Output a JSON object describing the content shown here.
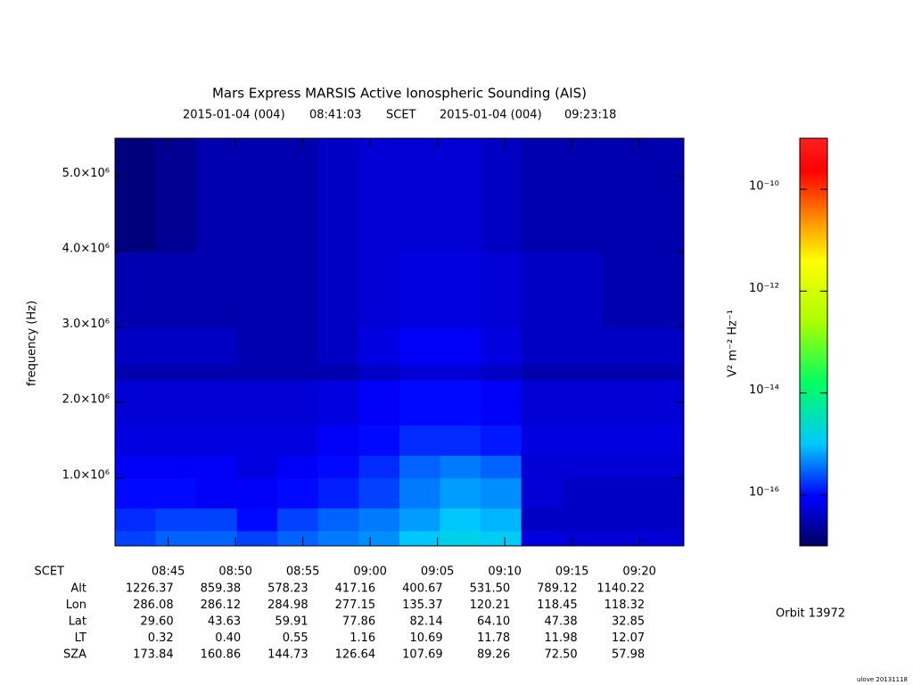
{
  "chart_data": {
    "type": "heatmap",
    "title": "Mars Express MARSIS Active Ionospheric Sounding (AIS)",
    "subtitle": {
      "start_date": "2015-01-04 (004)",
      "frame": "SCET",
      "end_date": "2015-01-04 (004)"
    },
    "ylabel": "frequency (Hz)",
    "colorbar_label": "V² m⁻² Hz⁻¹",
    "xlim": [
      "08:41:03",
      "09:23:18"
    ],
    "xticks": [
      "08:45",
      "08:50",
      "08:55",
      "09:00",
      "09:05",
      "09:10",
      "09:15",
      "09:20"
    ],
    "ylim": [
      100000,
      5500000
    ],
    "yticks": [
      {
        "value": 1000000,
        "label": "1.0×10⁶"
      },
      {
        "value": 2000000,
        "label": "2.0×10⁶"
      },
      {
        "value": 3000000,
        "label": "3.0×10⁶"
      },
      {
        "value": 4000000,
        "label": "4.0×10⁶"
      },
      {
        "value": 5000000,
        "label": "5.0×10⁶"
      }
    ],
    "color_log_scale": true,
    "clim": [
      1e-17,
      1e-09
    ],
    "cticks": [
      {
        "value": 1e-10,
        "label": "10⁻¹⁰"
      },
      {
        "value": 1e-12,
        "label": "10⁻¹²"
      },
      {
        "value": 1e-14,
        "label": "10⁻¹⁴"
      },
      {
        "value": 1e-16,
        "label": "10⁻¹⁶"
      }
    ],
    "freq_edges": [
      100000,
      300000,
      600000,
      1000000,
      1300000,
      1700000,
      2300000,
      2500000,
      3000000,
      4000000,
      5500000
    ],
    "z": [
      [
        2e-16,
        3e-16,
        3e-16,
        2e-16,
        3e-16,
        4e-16,
        5e-16,
        1e-15,
        1.5e-15,
        1.2e-15,
        6e-17,
        5e-17,
        5e-17,
        5e-17
      ],
      [
        1.5e-16,
        2e-16,
        2e-16,
        1e-16,
        2e-16,
        3e-16,
        4e-16,
        6e-16,
        1e-15,
        8e-16,
        4e-17,
        4e-17,
        4e-17,
        4e-17
      ],
      [
        1e-16,
        1e-16,
        8e-17,
        8e-17,
        1e-16,
        1.3e-16,
        2e-16,
        4e-16,
        6e-16,
        5e-16,
        5e-17,
        4e-17,
        4e-17,
        4e-17
      ],
      [
        8e-17,
        8e-17,
        8e-17,
        6e-17,
        8e-17,
        1e-16,
        1.5e-16,
        3e-16,
        4e-16,
        3e-16,
        5e-17,
        5e-17,
        5e-17,
        5e-17
      ],
      [
        6e-17,
        6e-17,
        6e-17,
        6e-17,
        6e-17,
        8e-17,
        1e-16,
        1.5e-16,
        1.5e-16,
        1.2e-16,
        6e-17,
        6e-17,
        6e-17,
        6e-17
      ],
      [
        5e-17,
        5e-17,
        5e-17,
        5e-17,
        5e-17,
        6e-17,
        8e-17,
        1e-16,
        1e-16,
        8e-17,
        5e-17,
        5e-17,
        5e-17,
        5e-17
      ],
      [
        3e-17,
        3e-17,
        3e-17,
        3e-17,
        3e-17,
        3e-17,
        4e-17,
        5e-17,
        5e-17,
        4e-17,
        3e-17,
        3e-17,
        3e-17,
        3e-17
      ],
      [
        4e-17,
        4e-17,
        4e-17,
        3e-17,
        3e-17,
        4e-17,
        6e-17,
        8e-17,
        8e-17,
        6e-17,
        4e-17,
        4e-17,
        4e-17,
        4e-17
      ],
      [
        3e-17,
        3e-17,
        3e-17,
        3e-17,
        3e-17,
        4e-17,
        5e-17,
        6e-17,
        6e-17,
        5e-17,
        4e-17,
        4e-17,
        3e-17,
        3e-17
      ],
      [
        1.5e-17,
        2e-17,
        3e-17,
        3e-17,
        3e-17,
        4e-17,
        5e-17,
        5e-17,
        5e-17,
        4e-17,
        3e-17,
        3e-17,
        3e-17,
        3e-17
      ]
    ],
    "ephemeris_header": "SCET",
    "ephemeris": [
      {
        "name": "Alt",
        "values": [
          "1226.37",
          "859.38",
          "578.23",
          "417.16",
          "400.67",
          "531.50",
          "789.12",
          "1140.22"
        ]
      },
      {
        "name": "Lon",
        "values": [
          "286.08",
          "286.12",
          "284.98",
          "277.15",
          "135.37",
          "120.21",
          "118.45",
          "118.32"
        ]
      },
      {
        "name": "Lat",
        "values": [
          "29.60",
          "43.63",
          "59.91",
          "77.86",
          "82.14",
          "64.10",
          "47.38",
          "32.85"
        ]
      },
      {
        "name": "LT",
        "values": [
          "0.32",
          "0.40",
          "0.55",
          "1.16",
          "10.69",
          "11.78",
          "11.98",
          "12.07"
        ]
      },
      {
        "name": "SZA",
        "values": [
          "173.84",
          "160.86",
          "144.73",
          "126.64",
          "107.69",
          "89.26",
          "72.50",
          "57.98"
        ]
      }
    ],
    "orbit": "Orbit 13972",
    "credit": "ulove 20131118"
  }
}
